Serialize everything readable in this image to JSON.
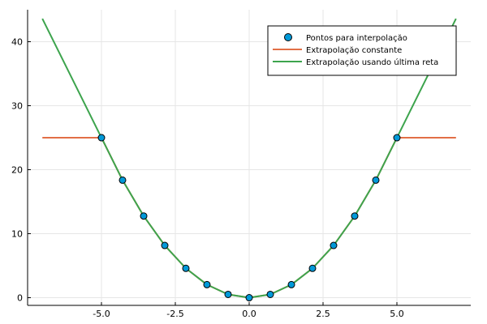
{
  "chart_data": {
    "type": "line",
    "title": "",
    "xlabel": "",
    "ylabel": "",
    "xlim": [
      -7.5,
      7.5
    ],
    "ylim": [
      -1.2,
      45
    ],
    "xticks": [
      -5.0,
      -2.5,
      0.0,
      2.5,
      5.0
    ],
    "xtick_labels": [
      "-5.0",
      "-2.5",
      "0.0",
      "2.5",
      "5.0"
    ],
    "yticks": [
      0,
      10,
      20,
      30,
      40
    ],
    "ytick_labels": [
      "0",
      "10",
      "20",
      "30",
      "40"
    ],
    "grid": true,
    "legend_position": "top-right",
    "series": [
      {
        "name": "Pontos para interpolaçăo",
        "kind": "scatter",
        "color": "#0099d8",
        "x": [
          -5.0,
          -4.286,
          -3.571,
          -2.857,
          -2.143,
          -1.429,
          -0.714,
          0.0,
          0.714,
          1.429,
          2.143,
          2.857,
          3.571,
          4.286,
          5.0
        ],
        "y": [
          25.0,
          18.37,
          12.76,
          8.16,
          4.59,
          2.04,
          0.51,
          0.0,
          0.51,
          2.04,
          4.59,
          8.16,
          12.76,
          18.37,
          25.0
        ]
      },
      {
        "name": "Extrapolaçăo constante",
        "kind": "line",
        "color": "#e26f46",
        "x": [
          -7.0,
          -5.0,
          -4.286,
          -3.571,
          -2.857,
          -2.143,
          -1.429,
          -0.714,
          0.0,
          0.714,
          1.429,
          2.143,
          2.857,
          3.571,
          4.286,
          5.0,
          7.0
        ],
        "y": [
          25.0,
          25.0,
          18.37,
          12.76,
          8.16,
          4.59,
          2.04,
          0.51,
          0.0,
          0.51,
          2.04,
          4.59,
          8.16,
          12.76,
          18.37,
          25.0,
          25.0
        ]
      },
      {
        "name": "Extrapolaçăo usando última reta",
        "kind": "line",
        "color": "#3da44d",
        "x": [
          -7.0,
          -5.0,
          -4.286,
          -3.571,
          -2.857,
          -2.143,
          -1.429,
          -0.714,
          0.0,
          0.714,
          1.429,
          2.143,
          2.857,
          3.571,
          4.286,
          5.0,
          7.0
        ],
        "y": [
          43.6,
          25.0,
          18.37,
          12.76,
          8.16,
          4.59,
          2.04,
          0.51,
          0.0,
          0.51,
          2.04,
          4.59,
          8.16,
          12.76,
          18.37,
          25.0,
          43.6
        ]
      }
    ]
  }
}
